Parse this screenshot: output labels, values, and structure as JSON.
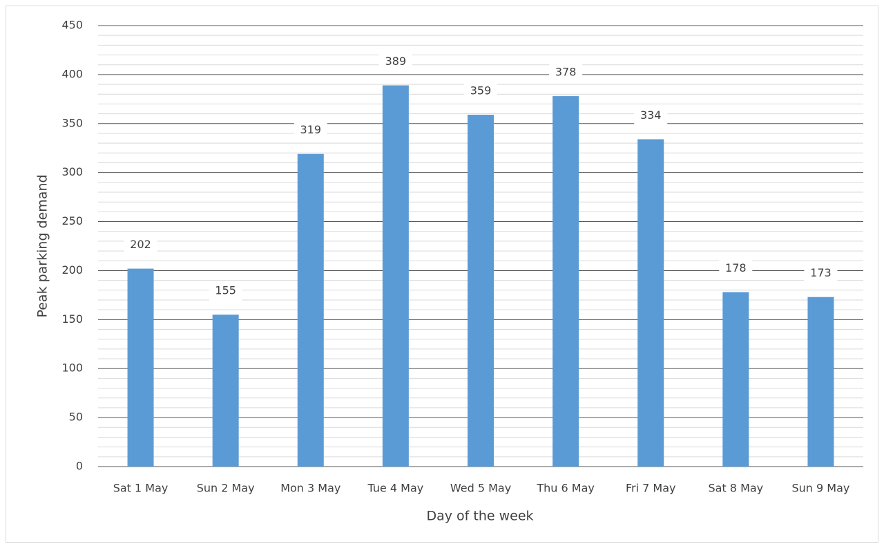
{
  "chart_data": {
    "type": "bar",
    "x_label": "Day of the week",
    "y_label": "Peak parking demand",
    "categories": [
      "Sat 1 May",
      "Sun 2 May",
      "Mon 3 May",
      "Tue 4 May",
      "Wed 5 May",
      "Thu 6 May",
      "Fri 7 May",
      "Sat 8 May",
      "Sun 9 May"
    ],
    "values": [
      202,
      155,
      319,
      389,
      359,
      378,
      334,
      178,
      173
    ],
    "color": "#5b9bd5",
    "ylim": [
      0,
      450
    ],
    "yticks": [
      0,
      50,
      100,
      150,
      200,
      250,
      300,
      350,
      400,
      450
    ],
    "grid": true,
    "minor_grid": true
  }
}
